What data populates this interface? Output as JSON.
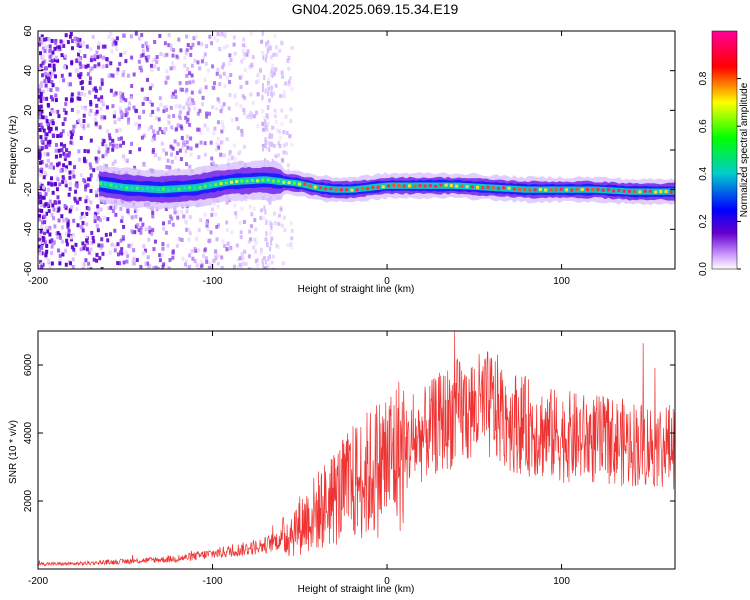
{
  "figure": {
    "title": "GN04.2025.069.15.34.E19"
  },
  "chart_data": [
    {
      "type": "heatmap",
      "title": "",
      "xlabel": "Height of straight line (km)",
      "ylabel": "Frequency (Hz)",
      "xlim": [
        -200,
        165
      ],
      "ylim": [
        -60,
        60
      ],
      "xticks": [
        -200,
        -100,
        0,
        100
      ],
      "yticks": [
        -60,
        -40,
        -20,
        0,
        20,
        40,
        60
      ],
      "grid": false,
      "colorbar": {
        "label": "Normalized spectral amplitude",
        "range": [
          0.0,
          1.0
        ],
        "ticks": [
          "0.0",
          "0.2",
          "0.4",
          "0.6",
          "0.8"
        ],
        "tick_values": [
          0.0,
          0.2,
          0.4,
          0.6,
          0.8
        ],
        "colors": [
          "#ffffff",
          "#cc99ff",
          "#6600cc",
          "#0000ff",
          "#00cccc",
          "#00ff00",
          "#ffff00",
          "#ff0000",
          "#ff0099"
        ]
      },
      "ridge": {
        "x": [
          -165,
          -150,
          -130,
          -110,
          -90,
          -70,
          -50,
          -40,
          -30,
          -20,
          -10,
          0,
          20,
          40,
          60,
          80,
          100,
          120,
          140,
          165
        ],
        "frequency": [
          -17,
          -19,
          -20,
          -19,
          -16,
          -15,
          -17,
          -19,
          -20,
          -20,
          -19,
          -18,
          -18,
          -18,
          -19,
          -20,
          -20,
          -20,
          -21,
          -21
        ]
      },
      "noise_region_x": [
        -200,
        -65
      ]
    },
    {
      "type": "line",
      "title": "",
      "xlabel": "Height of straight line (km)",
      "ylabel": "SNR (10 * v/v)",
      "xlim": [
        -200,
        165
      ],
      "ylim": [
        0,
        7000
      ],
      "xticks": [
        -200,
        -100,
        0,
        100
      ],
      "yticks": [
        2000,
        4000,
        6000
      ],
      "grid": false,
      "series": [
        {
          "color": "#ee3333",
          "x": [
            -200,
            -180,
            -160,
            -140,
            -120,
            -100,
            -80,
            -70,
            -60,
            -50,
            -40,
            -30,
            -20,
            -10,
            0,
            10,
            20,
            30,
            40,
            50,
            60,
            70,
            80,
            90,
            100,
            120,
            140,
            165
          ],
          "values": [
            150,
            150,
            200,
            250,
            300,
            450,
            600,
            700,
            900,
            1300,
            1700,
            2100,
            2500,
            2800,
            3200,
            3500,
            3900,
            4300,
            4600,
            4700,
            4800,
            4400,
            4200,
            4000,
            3900,
            3800,
            3700,
            3600
          ]
        }
      ]
    }
  ]
}
